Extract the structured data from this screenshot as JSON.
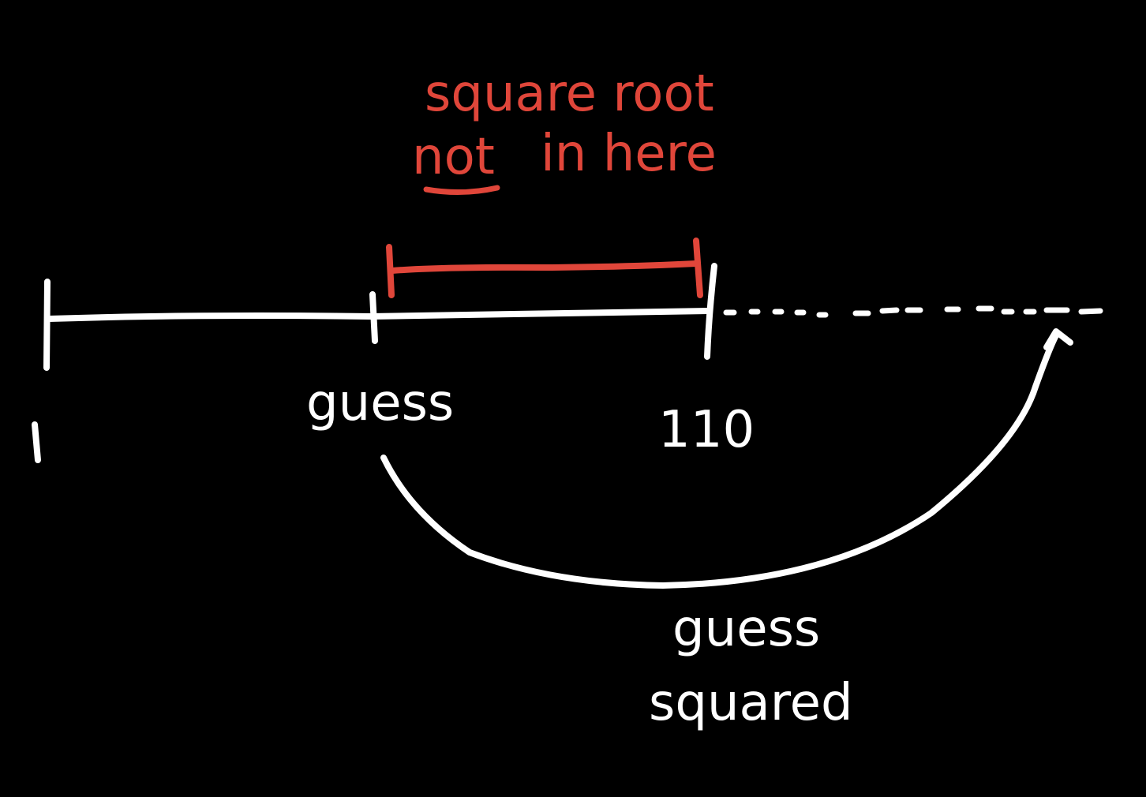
{
  "colors": {
    "background": "#000000",
    "ink": "#ffffff",
    "highlight": "#e0463a"
  },
  "annotation": {
    "line1": "square root",
    "line2_emphasis": "not",
    "line2_rest": "in here"
  },
  "number_line": {
    "start_label": "1",
    "guess_label": "guess",
    "end_label": "110"
  },
  "arrow": {
    "label_line1": "guess",
    "label_line2": "squared"
  }
}
